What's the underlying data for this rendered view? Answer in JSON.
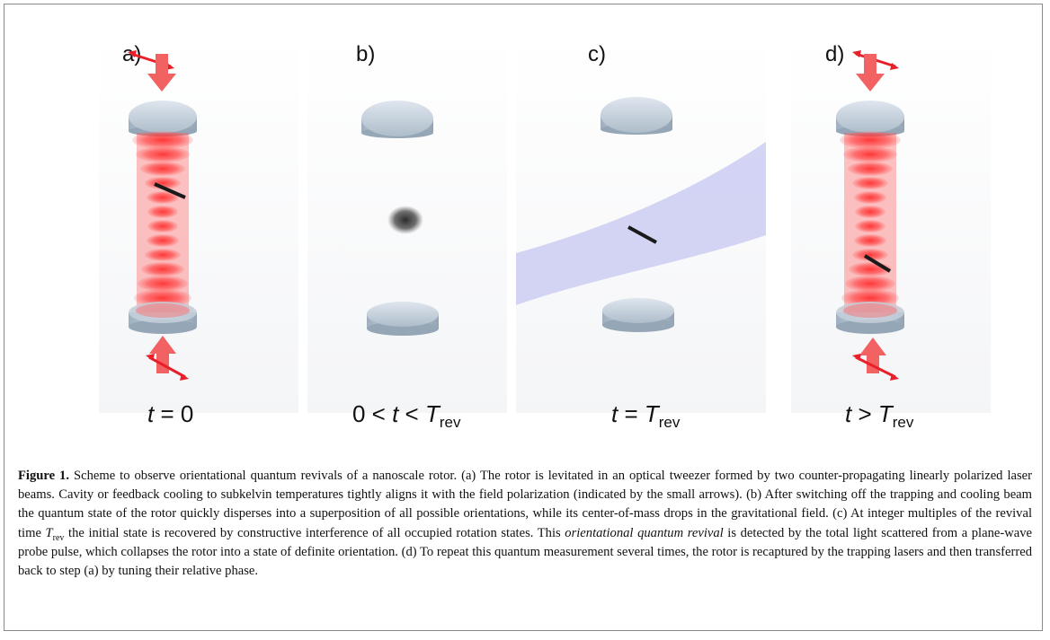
{
  "figure": {
    "panels": [
      {
        "letter": "a)",
        "time_italic": "t",
        "time_rest": " = 0",
        "time_sub": ""
      },
      {
        "letter": "b)",
        "time_prefix": "0 < ",
        "time_italic": "t",
        "time_mid": " < ",
        "time_italic2": "T",
        "time_sub": "rev"
      },
      {
        "letter": "c)",
        "time_italic": "t",
        "time_mid": " = ",
        "time_italic2": "T",
        "time_sub": "rev"
      },
      {
        "letter": "d)",
        "time_italic": "t",
        "time_mid": " > ",
        "time_italic2": "T",
        "time_sub": "rev"
      }
    ],
    "colors": {
      "laser": "#ff2020",
      "arrow": "#e8202a",
      "lens": "#b9c6d2",
      "probe_beam": "#c9c9f2",
      "rotor": "#1a1a1a"
    }
  },
  "caption": {
    "label": "Figure 1.",
    "p1": " Scheme to observe orientational quantum revivals of a nanoscale rotor. (a) The rotor is levitated in an optical tweezer formed by two counter-propagating linearly polarized laser beams. Cavity or feedback cooling to subkelvin temperatures tightly aligns it with the field polarization (indicated by the small arrows). (b) After switching off the trapping and cooling beam the quantum state of the rotor quickly disperses into a superposition of all possible orientations, while its center-of-mass drops in the gravitational field. (c) At integer multiples of the revival time ",
    "trev_T": "T",
    "trev_sub": "rev",
    "p2": " the initial state is recovered by constructive interference of all occupied rotation states. This ",
    "italic_phrase": "orientational quantum revival",
    "p3": " is detected by the total light scattered from a plane-wave probe pulse, which collapses the rotor into a state of definite orientation. (d) To repeat this quantum measurement several times, the rotor is recaptured by the trapping lasers and then transferred back to step (a) by tuning their relative phase."
  }
}
